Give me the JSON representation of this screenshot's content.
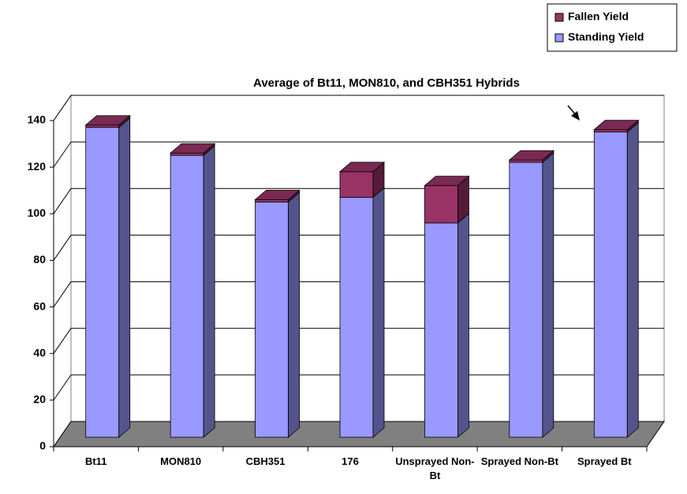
{
  "chart_data": {
    "type": "bar",
    "stacked": true,
    "annotation": "Average of Bt11, MON810, and CBH351 Hybrids",
    "categories": [
      "Bt11",
      "MON810",
      "CBH351",
      "176",
      "Unsprayed Non-Bt",
      "Sprayed Non-Bt",
      "Sprayed Bt"
    ],
    "series": [
      {
        "name": "Standing Yield",
        "color": "#9999ff",
        "values": [
          133,
          121,
          101,
          103,
          92,
          118,
          131
        ]
      },
      {
        "name": "Fallen Yield",
        "color": "#993366",
        "values": [
          1,
          1,
          1,
          11,
          16,
          1,
          1
        ]
      }
    ],
    "ylim": [
      0,
      140
    ],
    "yticks": [
      0,
      20,
      40,
      60,
      80,
      100,
      120,
      140
    ],
    "grid": true,
    "legend": "top-right"
  }
}
